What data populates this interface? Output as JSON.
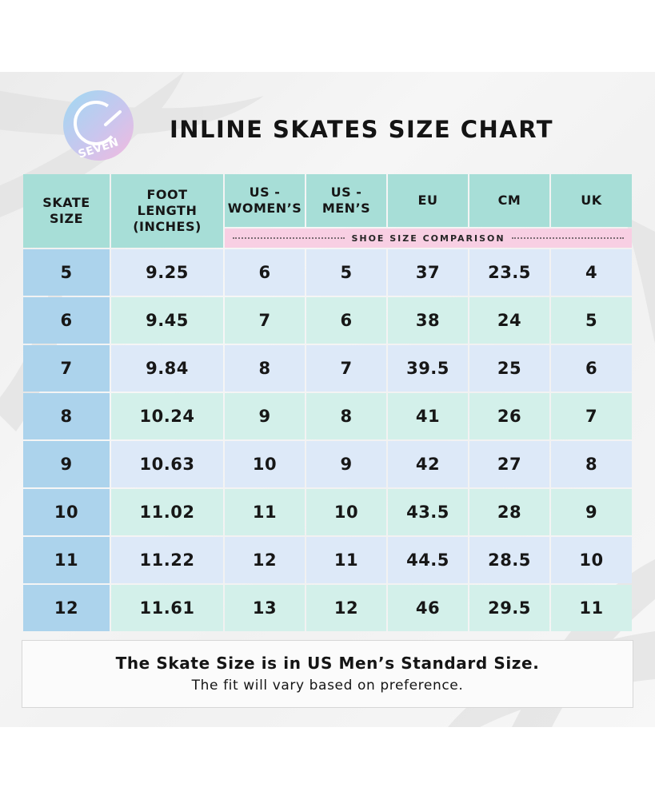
{
  "brand": {
    "logo_text": "SEVEN"
  },
  "title": "INLINE SKATES SIZE CHART",
  "table": {
    "headers": {
      "skate_size": [
        "SKATE",
        "SIZE"
      ],
      "foot_length": [
        "FOOT",
        "LENGTH",
        "(INCHES)"
      ],
      "us_womens": [
        "US -",
        "WOMEN’S"
      ],
      "us_mens": [
        "US -",
        "MEN’S"
      ],
      "eu": [
        "EU"
      ],
      "cm": [
        "CM"
      ],
      "uk": [
        "UK"
      ]
    },
    "comparison_label": "SHOE SIZE COMPARISON",
    "rows": [
      [
        "5",
        "9.25",
        "6",
        "5",
        "37",
        "23.5",
        "4"
      ],
      [
        "6",
        "9.45",
        "7",
        "6",
        "38",
        "24",
        "5"
      ],
      [
        "7",
        "9.84",
        "8",
        "7",
        "39.5",
        "25",
        "6"
      ],
      [
        "8",
        "10.24",
        "9",
        "8",
        "41",
        "26",
        "7"
      ],
      [
        "9",
        "10.63",
        "10",
        "9",
        "42",
        "27",
        "8"
      ],
      [
        "10",
        "11.02",
        "11",
        "10",
        "43.5",
        "28",
        "9"
      ],
      [
        "11",
        "11.22",
        "12",
        "11",
        "44.5",
        "28.5",
        "10"
      ],
      [
        "12",
        "11.61",
        "13",
        "12",
        "46",
        "29.5",
        "11"
      ]
    ]
  },
  "note": {
    "line1": "The Skate Size is in US Men’s Standard Size.",
    "line2": "The fit will vary based on preference."
  },
  "colors": {
    "header_teal": "#a7ded7",
    "comparison_pink": "#f8cfe3",
    "size_column_blue": "#acd3ec",
    "row_light_blue": "#dde9f8",
    "row_mint": "#d3f0ea"
  }
}
